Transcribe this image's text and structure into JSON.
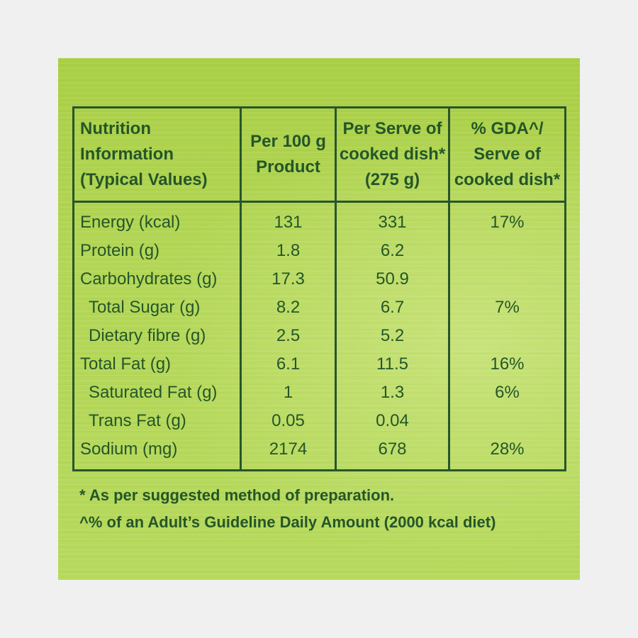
{
  "table": {
    "headers": [
      [
        "Nutrition",
        "Information",
        "(Typical Values)"
      ],
      [
        "Per 100 g",
        "Product"
      ],
      [
        "Per Serve of",
        "cooked dish*",
        "(275 g)"
      ],
      [
        "% GDA^/",
        "Serve of",
        "cooked dish*"
      ]
    ],
    "rows": [
      {
        "name": "Energy (kcal)",
        "per100": "131",
        "perServe": "331",
        "gda": "17%"
      },
      {
        "name": "Protein (g)",
        "per100": "1.8",
        "perServe": "6.2",
        "gda": ""
      },
      {
        "name": "Carbohydrates (g)",
        "per100": "17.3",
        "perServe": "50.9",
        "gda": ""
      },
      {
        "name": "Total Sugar (g)",
        "per100": "8.2",
        "perServe": "6.7",
        "gda": "7%"
      },
      {
        "name": "Dietary fibre (g)",
        "per100": "2.5",
        "perServe": "5.2",
        "gda": ""
      },
      {
        "name": "Total Fat (g)",
        "per100": "6.1",
        "perServe": "11.5",
        "gda": "16%"
      },
      {
        "name": "Saturated Fat (g)",
        "per100": "1",
        "perServe": "1.3",
        "gda": "6%"
      },
      {
        "name": "Trans Fat (g)",
        "per100": "0.05",
        "perServe": "0.04",
        "gda": ""
      },
      {
        "name": "Sodium (mg)",
        "per100": "2174",
        "perServe": "678",
        "gda": "28%"
      }
    ]
  },
  "footnotes": {
    "note1": "* As per suggested method of preparation.",
    "note2": "^% of an Adult’s Guideline Daily Amount (2000 kcal diet)"
  },
  "colors": {
    "text": "#245628",
    "background": "#b3d656"
  }
}
